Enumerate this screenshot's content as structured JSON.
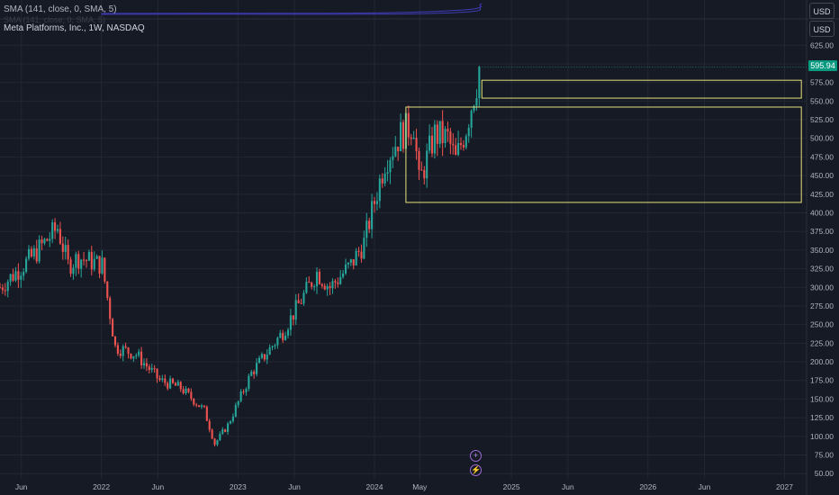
{
  "indicator": {
    "sma_label": "SMA (141, close, 0, SMA, 5)",
    "ghost_label": "SMA (141, close, 0, SMA, 5)"
  },
  "symbol": {
    "label": "Meta Platforms, Inc., 1W, NASDAQ"
  },
  "currency": {
    "top_pane": "USD",
    "main_pane": "USD"
  },
  "last_price": {
    "value": "595.94",
    "color": "#089981"
  },
  "buttons": {
    "add_icon": "plus-icon",
    "bolt_icon": "lightning-icon"
  },
  "colors": {
    "background": "#161a25",
    "grid": "#232734",
    "up": "#26a69a",
    "down": "#ef5350",
    "zones": "#e5e27a",
    "sma": "#3f3bb5",
    "accent": "#9c6ad6"
  },
  "chart_data": {
    "type": "candlestick",
    "symbol": "Meta Platforms, Inc.",
    "interval": "1W",
    "exchange": "NASDAQ",
    "y_ticks": [
      50,
      75,
      100,
      125,
      150,
      175,
      200,
      225,
      250,
      275,
      300,
      325,
      350,
      375,
      400,
      425,
      450,
      475,
      500,
      525,
      550,
      575,
      600,
      625
    ],
    "ylim": [
      43,
      635
    ],
    "x_ticks": [
      "Jun",
      "2022",
      "Jun",
      "2023",
      "Jun",
      "2024",
      "May",
      "2025",
      "Jun",
      "2026",
      "Jun",
      "2027"
    ],
    "x_tick_dates": [
      "2021-06-01",
      "2022-01-01",
      "2022-06-01",
      "2023-01-01",
      "2023-06-01",
      "2024-01-01",
      "2024-05-01",
      "2025-01-01",
      "2025-06-01",
      "2026-01-01",
      "2026-06-01",
      "2027-01-01"
    ],
    "last_price": 595.94,
    "trend_points": [
      [
        "2021-04-05",
        300
      ],
      [
        "2021-06-28",
        340
      ],
      [
        "2021-09-06",
        380
      ],
      [
        "2021-10-04",
        330
      ],
      [
        "2021-11-01",
        340
      ],
      [
        "2022-01-03",
        330
      ],
      [
        "2022-02-07",
        220
      ],
      [
        "2022-04-04",
        210
      ],
      [
        "2022-06-06",
        175
      ],
      [
        "2022-08-01",
        165
      ],
      [
        "2022-10-03",
        135
      ],
      [
        "2022-10-31",
        90
      ],
      [
        "2022-12-05",
        115
      ],
      [
        "2023-02-06",
        185
      ],
      [
        "2023-05-01",
        240
      ],
      [
        "2023-07-31",
        320
      ],
      [
        "2023-09-04",
        300
      ],
      [
        "2023-10-30",
        330
      ],
      [
        "2023-12-04",
        360
      ],
      [
        "2024-01-29",
        470
      ],
      [
        "2024-03-11",
        505
      ],
      [
        "2024-04-15",
        520
      ],
      [
        "2024-04-29",
        440
      ],
      [
        "2024-06-10",
        505
      ],
      [
        "2024-07-15",
        500
      ],
      [
        "2024-08-05",
        470
      ],
      [
        "2024-09-02",
        515
      ],
      [
        "2024-10-07",
        590
      ]
    ],
    "zones": [
      {
        "kind": "box",
        "date_start": "2024-03-25",
        "date_end": "2027-02-15",
        "price_top": 542,
        "price_bottom": 414
      },
      {
        "kind": "box",
        "date_start": "2024-10-14",
        "date_end": "2027-02-15",
        "price_top": 578,
        "price_bottom": 554
      }
    ],
    "sma": {
      "period": 141,
      "source": "close",
      "type": "SMA"
    }
  }
}
